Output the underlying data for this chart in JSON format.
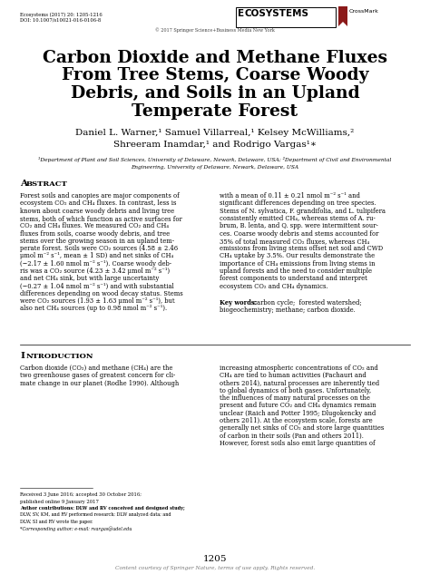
{
  "journal_line1": "Ecosystems (2017) 20: 1205-1216",
  "journal_line2": "DOI: 10.1007/s10021-016-0106-8",
  "copyright": "© 2017 Springer Science+Business Media New York",
  "title_lines": [
    "Carbon Dioxide and Methane Fluxes",
    "From Tree Stems, Coarse Woody",
    "Debris, and Soils in an Upland",
    "Temperate Forest"
  ],
  "author_line1": "Daniel L. Warner,¹ Samuel Villarreal,¹ Kelsey McWilliams,²",
  "author_line2": "Shreeram Inamdar,¹ and Rodrigo Vargas¹∗",
  "affil_line1": "¹Department of Plant and Soil Sciences, University of Delaware, Newark, Delaware, USA; ²Department of Civil and Environmental",
  "affil_line2": "Engineering, University of Delaware, Newark, Delaware, USA",
  "abstract_col1_lines": [
    "Forest soils and canopies are major components of",
    "ecosystem CO₂ and CH₄ fluxes. In contrast, less is",
    "known about coarse woody debris and living tree",
    "stems, both of which function as active surfaces for",
    "CO₂ and CH₄ fluxes. We measured CO₂ and CH₄",
    "fluxes from soils, coarse woody debris, and tree",
    "stems over the growing season in an upland tem-",
    "perate forest. Soils were CO₂ sources (4.58 ± 2.46",
    "μmol m⁻² s⁻¹, mean ± 1 SD) and net sinks of CH₄",
    "(−2.17 ± 1.60 nmol m⁻² s⁻¹). Coarse woody deb-",
    "ris was a CO₂ source (4.23 ± 3.42 μmol m⁻² s⁻¹)",
    "and net CH₄ sink, but with large uncertainty",
    "(−0.27 ± 1.04 nmol m⁻² s⁻¹) and with substantial",
    "differences depending on wood decay status. Stems",
    "were CO₂ sources (1.93 ± 1.63 μmol m⁻² s⁻¹), but",
    "also net CH₄ sources (up to 0.98 nmol m⁻² s⁻¹)."
  ],
  "abstract_col2_lines": [
    "with a mean of 0.11 ± 0.21 nmol m⁻² s⁻¹ and",
    "significant differences depending on tree species.",
    "Stems of N. sylvatica, F. grandifolia, and L. tulipifera",
    "consistently emitted CH₄, whereas stems of A. ru-",
    "brum, B. lenta, and Q. spp. were intermittent sour-",
    "ces. Coarse woody debris and stems accounted for",
    "35% of total measured CO₂ fluxes, whereas CH₄",
    "emissions from living stems offset net soil and CWD",
    "CH₄ uptake by 3.5%. Our results demonstrate the",
    "importance of CH₄ emissions from living stems in",
    "upland forests and the need to consider multiple",
    "forest components to understand and interpret",
    "ecosystem CO₂ and CH₄ dynamics."
  ],
  "keywords_label": "Key words:",
  "keywords_text": " carbon cycle;  forested watershed;",
  "keywords_line2": "biogeochemistry; methane; carbon dioxide.",
  "intro_col1_lines": [
    "Carbon dioxide (CO₂) and methane (CH₄) are the",
    "two greenhouse gases of greatest concern for cli-",
    "mate change in our planet (Rodhe 1990). Although"
  ],
  "intro_col2_lines": [
    "increasing atmospheric concentrations of CO₂ and",
    "CH₄ are tied to human activities (Pachauri and",
    "others 2014), natural processes are inherently tied",
    "to global dynamics of both gases. Unfortunately,",
    "the influences of many natural processes on the",
    "present and future CO₂ and CH₄ dynamics remain",
    "unclear (Raich and Potter 1995; Dlugokencky and",
    "others 2011). At the ecosystem scale, forests are",
    "generally net sinks of CO₂ and store large quantities",
    "of carbon in their soils (Pan and others 2011).",
    "However, forest soils also emit large quantities of"
  ],
  "footnote1": "Received 3 June 2016; accepted 30 October 2016;",
  "footnote2": "published online 9 January 2017",
  "footnote3a": "Author contributions: DLW and RV conceived and designed study;",
  "footnote3b": "DLW, SV, KM, and RV performed research; DLW analyzed data; and",
  "footnote3c": "DLW, SI and RV wrote the paper.",
  "footnote4": "*Corresponding author; e-mail: rvargas@udel.edu",
  "page_number": "1205",
  "content_courtesy": "Content courtesy of Springer Nature, terms of use apply. Rights reserved.",
  "bg_color": "#ffffff"
}
